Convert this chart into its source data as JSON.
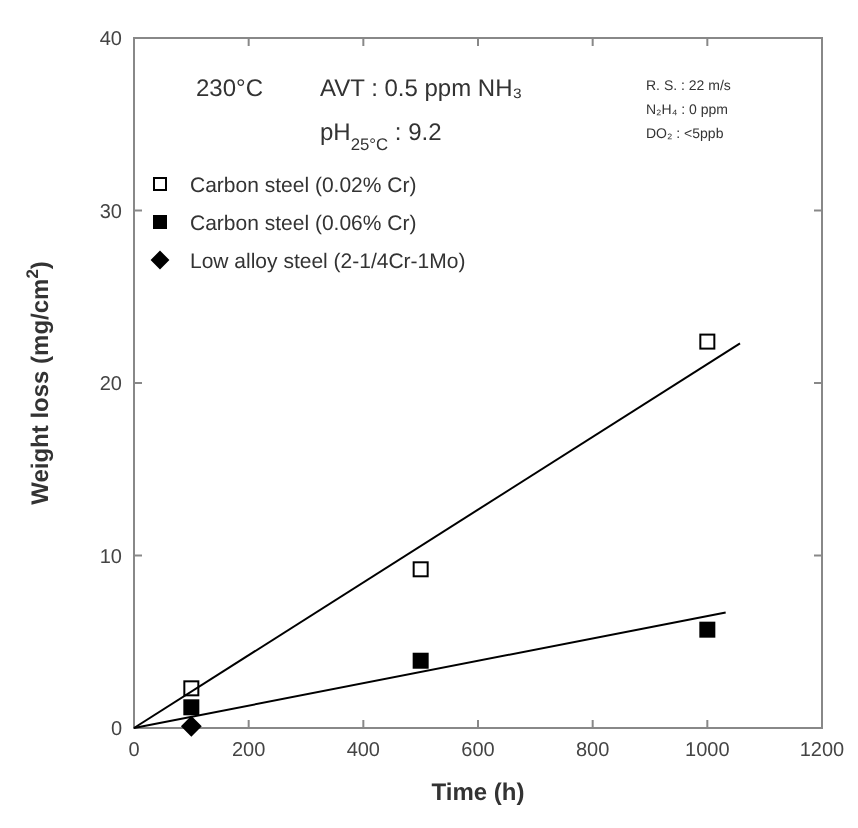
{
  "chart_data": {
    "type": "scatter",
    "xlabel": "Time  (h)",
    "ylabel": "Weight loss  (mg/cm$^{2}$)",
    "xlim": [
      0,
      1200
    ],
    "ylim": [
      0,
      40
    ],
    "xticks": [
      0,
      200,
      400,
      600,
      800,
      1000,
      1200
    ],
    "yticks": [
      0,
      10,
      20,
      30,
      40
    ],
    "grid": false,
    "legend": "top left",
    "annotations": [
      "230°C",
      "AVT : 0.5 ppm NH₃",
      "pH$_{25°C}$ : 9.2",
      "R. S. : 22 m/s",
      "N₂H₄ : 0 ppm",
      "DO₂ : <5ppb"
    ],
    "series": [
      {
        "name": "Carbon steel (0.02% Cr)",
        "color": "#ffffff",
        "marker": "square",
        "x": [
          100,
          500,
          1000
        ],
        "values": [
          2.3,
          9.2,
          22.4
        ]
      },
      {
        "name": "Carbon steel (0.06% Cr)",
        "color": "#000000",
        "marker": "square",
        "x": [
          100,
          500,
          1000
        ],
        "values": [
          1.2,
          3.9,
          5.7
        ]
      },
      {
        "name": "Low alloy steel (2-1/4Cr-1Mo)",
        "color": "#000000",
        "marker": "diamond",
        "x": [
          100
        ],
        "values": [
          0.1
        ]
      },
      {
        "type": "line",
        "color": "#000000",
        "x": [
          0,
          1057
        ],
        "values": [
          0,
          22.3
        ]
      },
      {
        "type": "line",
        "color": "#000000",
        "x": [
          0,
          1032
        ],
        "values": [
          0,
          6.7
        ]
      }
    ]
  }
}
